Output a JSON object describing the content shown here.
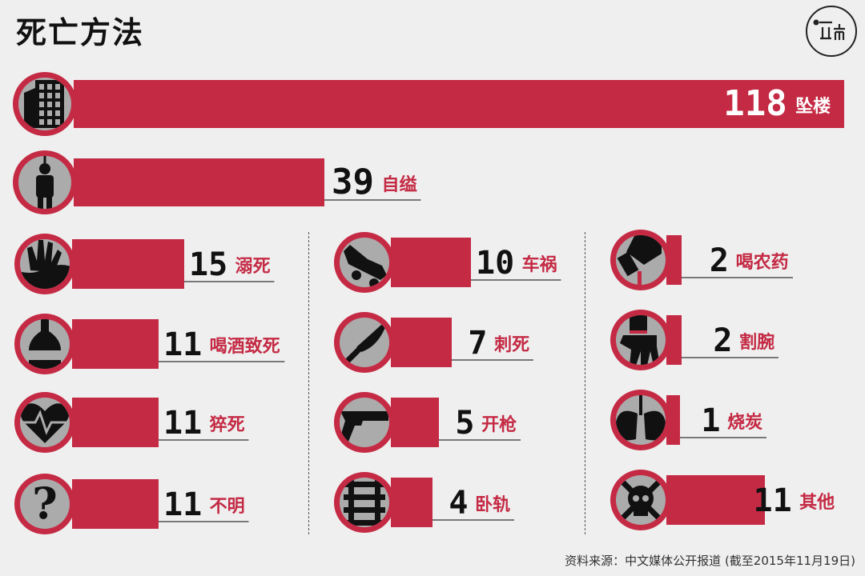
{
  "title": "死亡方法",
  "source": "资料来源：中文媒体公开报道 (截至2015年11月19日)",
  "colors": {
    "bar": "#c42a44",
    "background": "#efefef",
    "icon_disc": "#ababab"
  },
  "chart_data": {
    "type": "bar",
    "title": "死亡方法",
    "categories": [
      "坠楼",
      "自缢",
      "溺死",
      "喝酒致死",
      "猝死",
      "不明",
      "车祸",
      "刺死",
      "开枪",
      "卧轨",
      "喝农药",
      "割腕",
      "烧炭",
      "其他"
    ],
    "values": [
      118,
      39,
      15,
      11,
      11,
      11,
      10,
      7,
      5,
      4,
      2,
      2,
      1,
      11
    ],
    "icons": [
      "building-icon",
      "hanging-icon",
      "drowning-hand-icon",
      "bottle-icon",
      "heartbeat-icon",
      "question-icon",
      "car-crash-icon",
      "knife-icon",
      "gun-icon",
      "railway-track-icon",
      "pesticide-icon",
      "cut-wrist-icon",
      "lungs-icon",
      "skull-crossbones-icon"
    ]
  }
}
